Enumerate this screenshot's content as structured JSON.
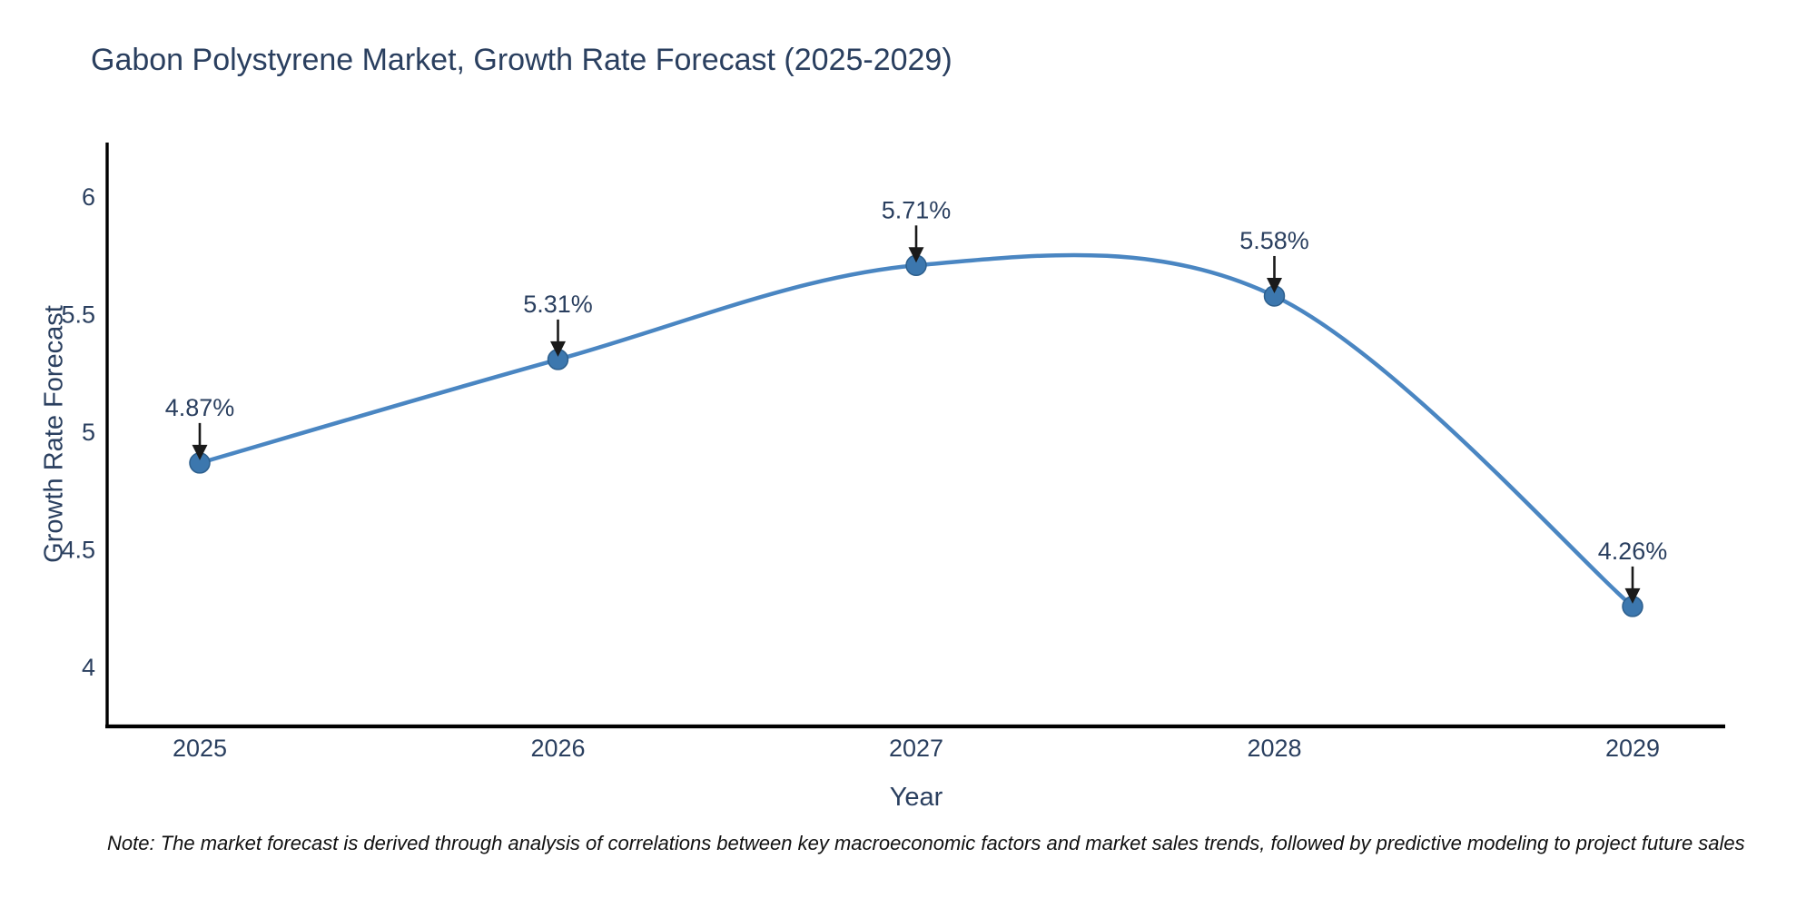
{
  "figure": {
    "note": "Note: The market forecast is derived through analysis of correlations between key macroeconomic factors and market sales trends, followed by predictive modeling to project future sales"
  },
  "chart_data": {
    "type": "line",
    "title": "Gabon Polystyrene Market, Growth Rate Forecast (2025-2029)",
    "xlabel": "Year",
    "ylabel": "Growth Rate Forecast",
    "categories": [
      "2025",
      "2026",
      "2027",
      "2028",
      "2029"
    ],
    "values": [
      4.87,
      5.31,
      5.71,
      5.58,
      4.26
    ],
    "point_labels": [
      "4.87%",
      "5.31%",
      "5.71%",
      "5.58%",
      "4.26%"
    ],
    "line_shape": "spline",
    "grid": false,
    "legend_position": "none",
    "y_ticks": [
      4,
      4.5,
      5,
      5.5,
      6
    ],
    "y_tick_labels": [
      "4",
      "4.5",
      "5",
      "5.5",
      "6"
    ],
    "ylim": [
      3.75,
      6.24
    ],
    "annotation_style": "label-with-down-arrow-to-point",
    "colors": {
      "line": "#4a86c2",
      "marker_fill": "#3c77ae",
      "marker_edge": "#2d5f8d",
      "axis_line": "#000000",
      "tick_text": "#2a3f5f",
      "title_text": "#2a3f5f",
      "arrow": "#1a1a1a"
    }
  }
}
